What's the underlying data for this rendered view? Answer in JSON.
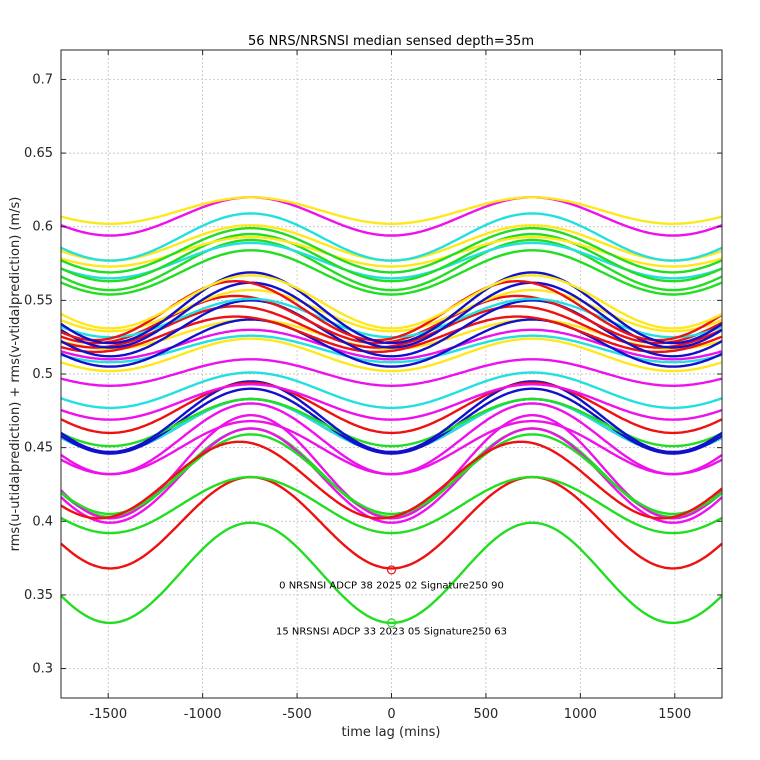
{
  "chart_data": {
    "type": "line",
    "title": "56 NRS/NRSNSI median sensed depth=35m",
    "xlabel": "time lag (mins)",
    "ylabel": "rms(u-utidalprediction) + rms(v-vtidalprediction) (m/s)",
    "xlim": [
      -1750,
      1750
    ],
    "ylim": [
      0.28,
      0.72
    ],
    "xticks": [
      -1500,
      -1000,
      -500,
      0,
      500,
      1000,
      1500
    ],
    "xtick_labels": [
      "-1500",
      "-1000",
      "-500",
      "0",
      "500",
      "1000",
      "1500"
    ],
    "yticks": [
      0.3,
      0.35,
      0.4,
      0.45,
      0.5,
      0.55,
      0.6,
      0.65,
      0.7
    ],
    "ytick_labels": [
      "0.3",
      "0.35",
      "0.4",
      "0.45",
      "0.5",
      "0.55",
      "0.6",
      "0.65",
      "0.7"
    ],
    "grid": true,
    "period_mins": 1490,
    "colors": {
      "green": "#22dd22",
      "red": "#ee1111",
      "blue": "#1111cc",
      "magenta": "#ee11ee",
      "cyan": "#22e0e0",
      "yellow": "#ffe81a"
    },
    "series": [
      {
        "name": "15 NRSNSI ADCP 33 2023 05 Signature250 63",
        "color": "green",
        "mean": 0.365,
        "amp": 0.034,
        "min_lag": 0
      },
      {
        "name": "0 NRSNSI ADCP 38 2025 02 Signature250 90",
        "color": "red",
        "mean": 0.399,
        "amp": 0.031,
        "min_lag": 0
      },
      {
        "name": "",
        "color": "green",
        "mean": 0.411,
        "amp": 0.019,
        "min_lag": 0
      },
      {
        "name": "",
        "color": "green",
        "mean": 0.433,
        "amp": 0.03,
        "min_lag": 0
      },
      {
        "name": "",
        "color": "magenta",
        "mean": 0.431,
        "amp": 0.032,
        "min_lag": 0
      },
      {
        "name": "",
        "color": "magenta",
        "mean": 0.437,
        "amp": 0.035,
        "min_lag": 0
      },
      {
        "name": "",
        "color": "green",
        "mean": 0.432,
        "amp": 0.027,
        "min_lag": 0
      },
      {
        "name": "",
        "color": "red",
        "mean": 0.428,
        "amp": 0.026,
        "min_lag": -60
      },
      {
        "name": "",
        "color": "magenta",
        "mean": 0.45,
        "amp": 0.018,
        "min_lag": 0
      },
      {
        "name": "",
        "color": "magenta",
        "mean": 0.456,
        "amp": 0.024,
        "min_lag": 0
      },
      {
        "name": "",
        "color": "blue",
        "mean": 0.465,
        "amp": 0.018,
        "min_lag": 0
      },
      {
        "name": "",
        "color": "cyan",
        "mean": 0.465,
        "amp": 0.018,
        "min_lag": 0
      },
      {
        "name": "",
        "color": "blue",
        "mean": 0.468,
        "amp": 0.022,
        "min_lag": 0
      },
      {
        "name": "",
        "color": "green",
        "mean": 0.467,
        "amp": 0.016,
        "min_lag": 0
      },
      {
        "name": "",
        "color": "blue",
        "mean": 0.471,
        "amp": 0.024,
        "min_lag": 0
      },
      {
        "name": "",
        "color": "red",
        "mean": 0.477,
        "amp": 0.017,
        "min_lag": 0
      },
      {
        "name": "",
        "color": "magenta",
        "mean": 0.481,
        "amp": 0.012,
        "min_lag": 0
      },
      {
        "name": "",
        "color": "cyan",
        "mean": 0.489,
        "amp": 0.012,
        "min_lag": 0
      },
      {
        "name": "",
        "color": "magenta",
        "mean": 0.501,
        "amp": 0.009,
        "min_lag": 0
      },
      {
        "name": "",
        "color": "yellow",
        "mean": 0.513,
        "amp": 0.011,
        "min_lag": 0
      },
      {
        "name": "",
        "color": "cyan",
        "mean": 0.517,
        "amp": 0.009,
        "min_lag": 0
      },
      {
        "name": "",
        "color": "magenta",
        "mean": 0.52,
        "amp": 0.01,
        "min_lag": 0
      },
      {
        "name": "",
        "color": "yellow",
        "mean": 0.527,
        "amp": 0.01,
        "min_lag": 0
      },
      {
        "name": "",
        "color": "blue",
        "mean": 0.521,
        "amp": 0.016,
        "min_lag": 0
      },
      {
        "name": "",
        "color": "red",
        "mean": 0.527,
        "amp": 0.012,
        "min_lag": -80
      },
      {
        "name": "",
        "color": "red",
        "mean": 0.532,
        "amp": 0.014,
        "min_lag": -80
      },
      {
        "name": "",
        "color": "blue",
        "mean": 0.531,
        "amp": 0.019,
        "min_lag": 0
      },
      {
        "name": "",
        "color": "red",
        "mean": 0.537,
        "amp": 0.016,
        "min_lag": -80
      },
      {
        "name": "",
        "color": "cyan",
        "mean": 0.538,
        "amp": 0.013,
        "min_lag": 0
      },
      {
        "name": "",
        "color": "yellow",
        "mean": 0.543,
        "amp": 0.014,
        "min_lag": 0
      },
      {
        "name": "",
        "color": "blue",
        "mean": 0.54,
        "amp": 0.022,
        "min_lag": 0
      },
      {
        "name": "",
        "color": "red",
        "mean": 0.543,
        "amp": 0.02,
        "min_lag": -80
      },
      {
        "name": "",
        "color": "blue",
        "mean": 0.545,
        "amp": 0.024,
        "min_lag": 0
      },
      {
        "name": "",
        "color": "yellow",
        "mean": 0.549,
        "amp": 0.018,
        "min_lag": 0
      },
      {
        "name": "",
        "color": "green",
        "mean": 0.569,
        "amp": 0.015,
        "min_lag": 0
      },
      {
        "name": "",
        "color": "green",
        "mean": 0.574,
        "amp": 0.017,
        "min_lag": 0
      },
      {
        "name": "",
        "color": "cyan",
        "mean": 0.577,
        "amp": 0.012,
        "min_lag": 0
      },
      {
        "name": "",
        "color": "green",
        "mean": 0.579,
        "amp": 0.016,
        "min_lag": 0
      },
      {
        "name": "",
        "color": "yellow",
        "mean": 0.583,
        "amp": 0.01,
        "min_lag": 0
      },
      {
        "name": "",
        "color": "green",
        "mean": 0.584,
        "amp": 0.015,
        "min_lag": 0
      },
      {
        "name": "",
        "color": "yellow",
        "mean": 0.589,
        "amp": 0.012,
        "min_lag": 0
      },
      {
        "name": "",
        "color": "cyan",
        "mean": 0.593,
        "amp": 0.016,
        "min_lag": 0
      },
      {
        "name": "",
        "color": "magenta",
        "mean": 0.607,
        "amp": 0.013,
        "min_lag": 0
      },
      {
        "name": "",
        "color": "yellow",
        "mean": 0.611,
        "amp": 0.009,
        "min_lag": 0
      }
    ],
    "annotations": [
      {
        "text": "0 NRSNSI ADCP 38 2025 02 Signature250 90",
        "x": 0,
        "y": 0.357,
        "marker_y": 0.367,
        "color": "red"
      },
      {
        "text": "15 NRSNSI ADCP 33 2023 05 Signature250 63",
        "x": 0,
        "y": 0.326,
        "marker_y": 0.331,
        "color": "green"
      }
    ]
  }
}
